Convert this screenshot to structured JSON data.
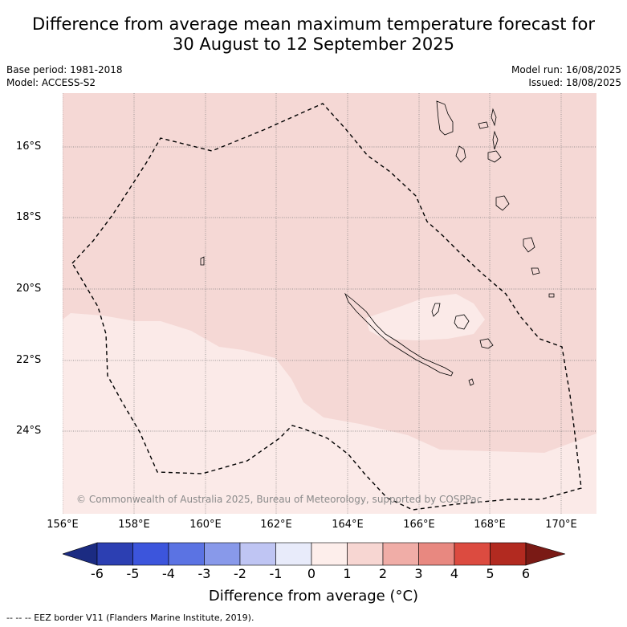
{
  "title_line1": "Difference from average mean maximum temperature forecast for",
  "title_line2": "30 August to 12 September 2025",
  "meta_left": [
    "Base period: 1981-2018",
    "Model: ACCESS-S2"
  ],
  "meta_right": [
    "Model run: 16/08/2025",
    "Issued: 18/08/2025"
  ],
  "map": {
    "lat_labels": [
      "16°S",
      "18°S",
      "20°S",
      "22°S",
      "24°S"
    ],
    "lon_labels": [
      "156°E",
      "158°E",
      "160°E",
      "162°E",
      "164°E",
      "166°E",
      "168°E",
      "170°E"
    ],
    "copyright": "© Commonwealth of Australia 2025, Bureau of Meteorology, supported by COSPPac",
    "fill_colors": {
      "band_0_1": "#fbeae8",
      "band_1_2": "#f5d8d5",
      "band_2_3": "#f0aca6"
    }
  },
  "colorbar": {
    "labels": [
      "-6",
      "-5",
      "-4",
      "-3",
      "-2",
      "-1",
      "0",
      "1",
      "2",
      "3",
      "4",
      "5",
      "6"
    ],
    "colors": [
      "#1b2b82",
      "#2c3fb2",
      "#3c55dc",
      "#5b73e3",
      "#8899ea",
      "#bfc5f3",
      "#e8ebfa",
      "#fdeeeb",
      "#f7d6d2",
      "#f0ada7",
      "#e88880",
      "#dc4b40",
      "#b22a20",
      "#7a1a15"
    ],
    "title": "Difference from average (°C)"
  },
  "footnote": "--  --  -- EEZ border V11 (Flanders Marine Institute, 2019)."
}
